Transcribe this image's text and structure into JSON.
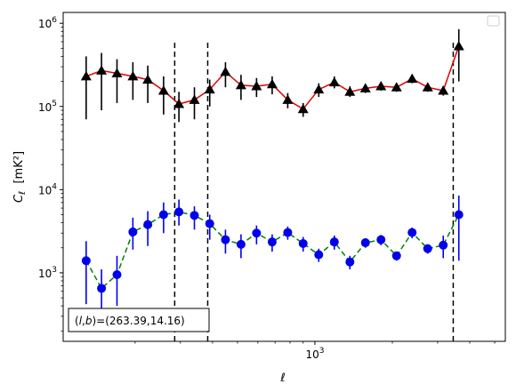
{
  "chart_data": {
    "type": "scatter",
    "xscale": "log",
    "yscale": "log",
    "xlim": [
      105,
      5500
    ],
    "ylim": [
      150,
      1350000
    ],
    "xlabel": "ℓ",
    "ylabel": "C_ℓ  [mK²]",
    "grid": false,
    "legend": "top-right (empty)",
    "x_ticks": [
      {
        "value": 1000,
        "label": "10^3"
      }
    ],
    "y_ticks": [
      {
        "value": 1000,
        "label": "10^3"
      },
      {
        "value": 10000,
        "label": "10^4"
      },
      {
        "value": 100000,
        "label": "10^5"
      },
      {
        "value": 1000000,
        "label": "10^6"
      }
    ],
    "vlines": [
      285,
      383,
      3450
    ],
    "annotation": "(l, b)=(263.39,14.16)",
    "series": [
      {
        "marker": "triangle",
        "marker_color": "#000000",
        "line_color": "#e00000",
        "line_style": "solid",
        "points": [
          {
            "x": 129,
            "y": 230000,
            "lo": 70000,
            "hi": 400000
          },
          {
            "x": 148,
            "y": 270000,
            "lo": 90000,
            "hi": 440000
          },
          {
            "x": 170,
            "y": 250000,
            "lo": 110000,
            "hi": 370000
          },
          {
            "x": 196,
            "y": 230000,
            "lo": 120000,
            "hi": 340000
          },
          {
            "x": 224,
            "y": 210000,
            "lo": 110000,
            "hi": 310000
          },
          {
            "x": 258,
            "y": 155000,
            "lo": 80000,
            "hi": 230000
          },
          {
            "x": 296,
            "y": 107000,
            "lo": 65000,
            "hi": 150000
          },
          {
            "x": 340,
            "y": 120000,
            "lo": 70000,
            "hi": 170000
          },
          {
            "x": 390,
            "y": 160000,
            "lo": 100000,
            "hi": 210000
          },
          {
            "x": 449,
            "y": 260000,
            "lo": 170000,
            "hi": 340000
          },
          {
            "x": 516,
            "y": 180000,
            "lo": 120000,
            "hi": 240000
          },
          {
            "x": 593,
            "y": 175000,
            "lo": 130000,
            "hi": 220000
          },
          {
            "x": 682,
            "y": 185000,
            "lo": 140000,
            "hi": 230000
          },
          {
            "x": 784,
            "y": 120000,
            "lo": 95000,
            "hi": 145000
          },
          {
            "x": 900,
            "y": 93000,
            "lo": 75000,
            "hi": 110000
          },
          {
            "x": 1035,
            "y": 160000,
            "lo": 130000,
            "hi": 190000
          },
          {
            "x": 1190,
            "y": 195000,
            "lo": 165000,
            "hi": 230000
          },
          {
            "x": 1368,
            "y": 150000,
            "lo": 130000,
            "hi": 175000
          },
          {
            "x": 1572,
            "y": 165000,
            "lo": 145000,
            "hi": 185000
          },
          {
            "x": 1807,
            "y": 175000,
            "lo": 155000,
            "hi": 195000
          },
          {
            "x": 2077,
            "y": 170000,
            "lo": 150000,
            "hi": 190000
          },
          {
            "x": 2388,
            "y": 215000,
            "lo": 190000,
            "hi": 240000
          },
          {
            "x": 2745,
            "y": 170000,
            "lo": 150000,
            "hi": 190000
          },
          {
            "x": 3155,
            "y": 155000,
            "lo": 135000,
            "hi": 175000
          },
          {
            "x": 3627,
            "y": 530000,
            "lo": 200000,
            "hi": 850000
          }
        ]
      },
      {
        "marker": "circle",
        "marker_color": "#0000ee",
        "line_color": "#008000",
        "line_style": "dashed",
        "points": [
          {
            "x": 129,
            "y": 1400,
            "lo": 420,
            "hi": 2400
          },
          {
            "x": 148,
            "y": 650,
            "lo": 330,
            "hi": 1100
          },
          {
            "x": 170,
            "y": 950,
            "lo": 400,
            "hi": 1600
          },
          {
            "x": 196,
            "y": 3100,
            "lo": 1900,
            "hi": 4600
          },
          {
            "x": 224,
            "y": 3800,
            "lo": 2100,
            "hi": 5500
          },
          {
            "x": 258,
            "y": 5000,
            "lo": 3000,
            "hi": 7000
          },
          {
            "x": 296,
            "y": 5400,
            "lo": 3700,
            "hi": 7600
          },
          {
            "x": 340,
            "y": 4900,
            "lo": 3300,
            "hi": 6300
          },
          {
            "x": 390,
            "y": 3900,
            "lo": 2500,
            "hi": 5000
          },
          {
            "x": 449,
            "y": 2500,
            "lo": 1700,
            "hi": 3300
          },
          {
            "x": 516,
            "y": 2200,
            "lo": 1500,
            "hi": 2900
          },
          {
            "x": 593,
            "y": 3000,
            "lo": 2200,
            "hi": 3700
          },
          {
            "x": 682,
            "y": 2350,
            "lo": 1800,
            "hi": 2900
          },
          {
            "x": 784,
            "y": 3050,
            "lo": 2500,
            "hi": 3600
          },
          {
            "x": 900,
            "y": 2250,
            "lo": 1800,
            "hi": 2700
          },
          {
            "x": 1035,
            "y": 1650,
            "lo": 1350,
            "hi": 1950
          },
          {
            "x": 1190,
            "y": 2350,
            "lo": 1900,
            "hi": 2800
          },
          {
            "x": 1368,
            "y": 1350,
            "lo": 1100,
            "hi": 1600
          },
          {
            "x": 1572,
            "y": 2300,
            "lo": 2000,
            "hi": 2600
          },
          {
            "x": 1807,
            "y": 2500,
            "lo": 2150,
            "hi": 2850
          },
          {
            "x": 2077,
            "y": 1600,
            "lo": 1400,
            "hi": 1800
          },
          {
            "x": 2388,
            "y": 3050,
            "lo": 2600,
            "hi": 3500
          },
          {
            "x": 2745,
            "y": 1950,
            "lo": 1700,
            "hi": 2200
          },
          {
            "x": 3155,
            "y": 2150,
            "lo": 1500,
            "hi": 2800
          },
          {
            "x": 3627,
            "y": 5000,
            "lo": 1400,
            "hi": 8500
          }
        ]
      }
    ]
  }
}
